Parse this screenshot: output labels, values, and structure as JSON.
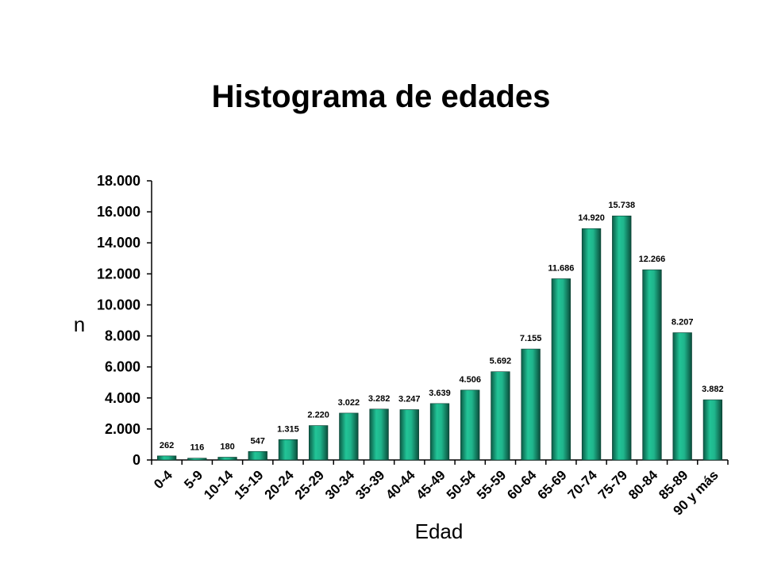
{
  "chart_data": {
    "type": "bar",
    "title": "Histograma de edades",
    "xlabel": "Edad",
    "ylabel": "n",
    "ylim": [
      0,
      18000
    ],
    "yticks": [
      0,
      2000,
      4000,
      6000,
      8000,
      10000,
      12000,
      14000,
      16000,
      18000
    ],
    "ytick_labels": [
      "0",
      "2.000",
      "4.000",
      "6.000",
      "8.000",
      "10.000",
      "12.000",
      "14.000",
      "16.000",
      "18.000"
    ],
    "categories": [
      "0-4",
      "5-9",
      "10-14",
      "15-19",
      "20-24",
      "25-29",
      "30-34",
      "35-39",
      "40-44",
      "45-49",
      "50-54",
      "55-59",
      "60-64",
      "65-69",
      "70-74",
      "75-79",
      "80-84",
      "85-89",
      "90 y más"
    ],
    "values": [
      262,
      116,
      180,
      547,
      1315,
      2220,
      3022,
      3282,
      3247,
      3639,
      4506,
      5692,
      7155,
      11686,
      14920,
      15738,
      12266,
      8207,
      3882
    ],
    "value_labels": [
      "262",
      "116",
      "180",
      "547",
      "1.315",
      "2.220",
      "3.022",
      "3.282",
      "3.247",
      "3.639",
      "4.506",
      "5.692",
      "7.155",
      "11.686",
      "14.920",
      "15.738",
      "12.266",
      "8.207",
      "3.882"
    ],
    "bar_color": "#1a9b7a",
    "grid": false,
    "legend": "none"
  }
}
